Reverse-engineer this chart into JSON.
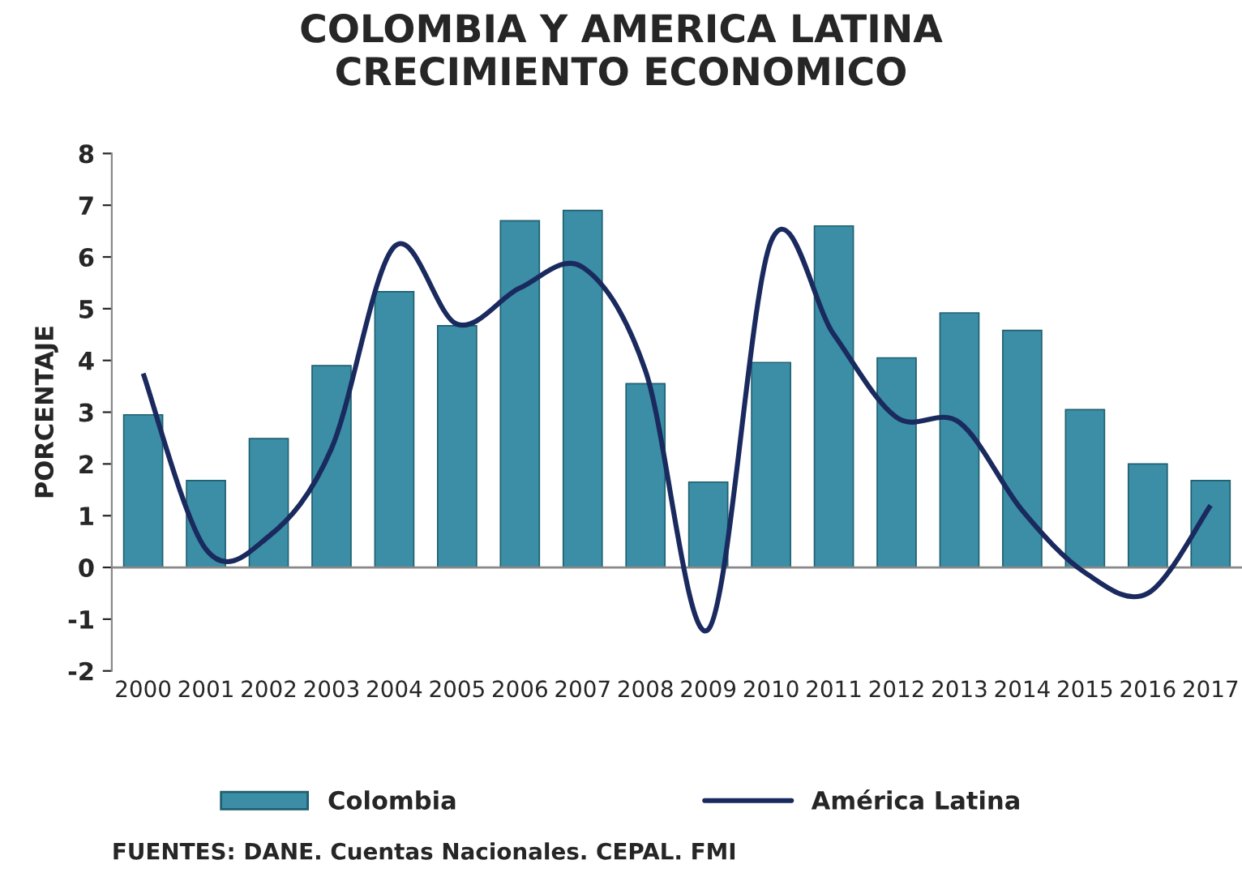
{
  "chart_data": {
    "type": "bar",
    "title": "COLOMBIA Y AMERICA LATINA\nCRECIMIENTO ECONOMICO",
    "ylabel": "PORCENTAJE",
    "categories": [
      "2000",
      "2001",
      "2002",
      "2003",
      "2004",
      "2005",
      "2006",
      "2007",
      "2008",
      "2009",
      "2010",
      "2011",
      "2012",
      "2013",
      "2014",
      "2015",
      "2016",
      "2017"
    ],
    "series": [
      {
        "name": "Colombia",
        "color": "#3b8ea5",
        "values": [
          2.95,
          1.68,
          2.49,
          3.9,
          5.33,
          4.67,
          6.7,
          6.9,
          3.55,
          1.65,
          3.96,
          6.6,
          4.05,
          4.92,
          4.58,
          3.05,
          2.0,
          1.68
        ]
      },
      {
        "name": "América Latina",
        "type": "line",
        "color": "#1a2a5e",
        "values": [
          3.75,
          0.35,
          0.6,
          2.3,
          6.2,
          4.7,
          5.4,
          5.8,
          3.8,
          -1.2,
          6.3,
          4.5,
          2.9,
          2.8,
          1.1,
          -0.1,
          -0.5,
          1.2
        ]
      }
    ],
    "ylim": [
      -2,
      8
    ],
    "yticks": [
      -2,
      -1,
      0,
      1,
      2,
      3,
      4,
      5,
      6,
      7,
      8
    ],
    "grid": false,
    "ref_lines": [
      {
        "axis": "y",
        "value": 0
      }
    ],
    "legend": "bottom",
    "line_style": "solid",
    "marker": "none",
    "annotations": [
      "FUENTES: DANE. Cuentas Nacionales. CEPAL. FMI"
    ]
  }
}
